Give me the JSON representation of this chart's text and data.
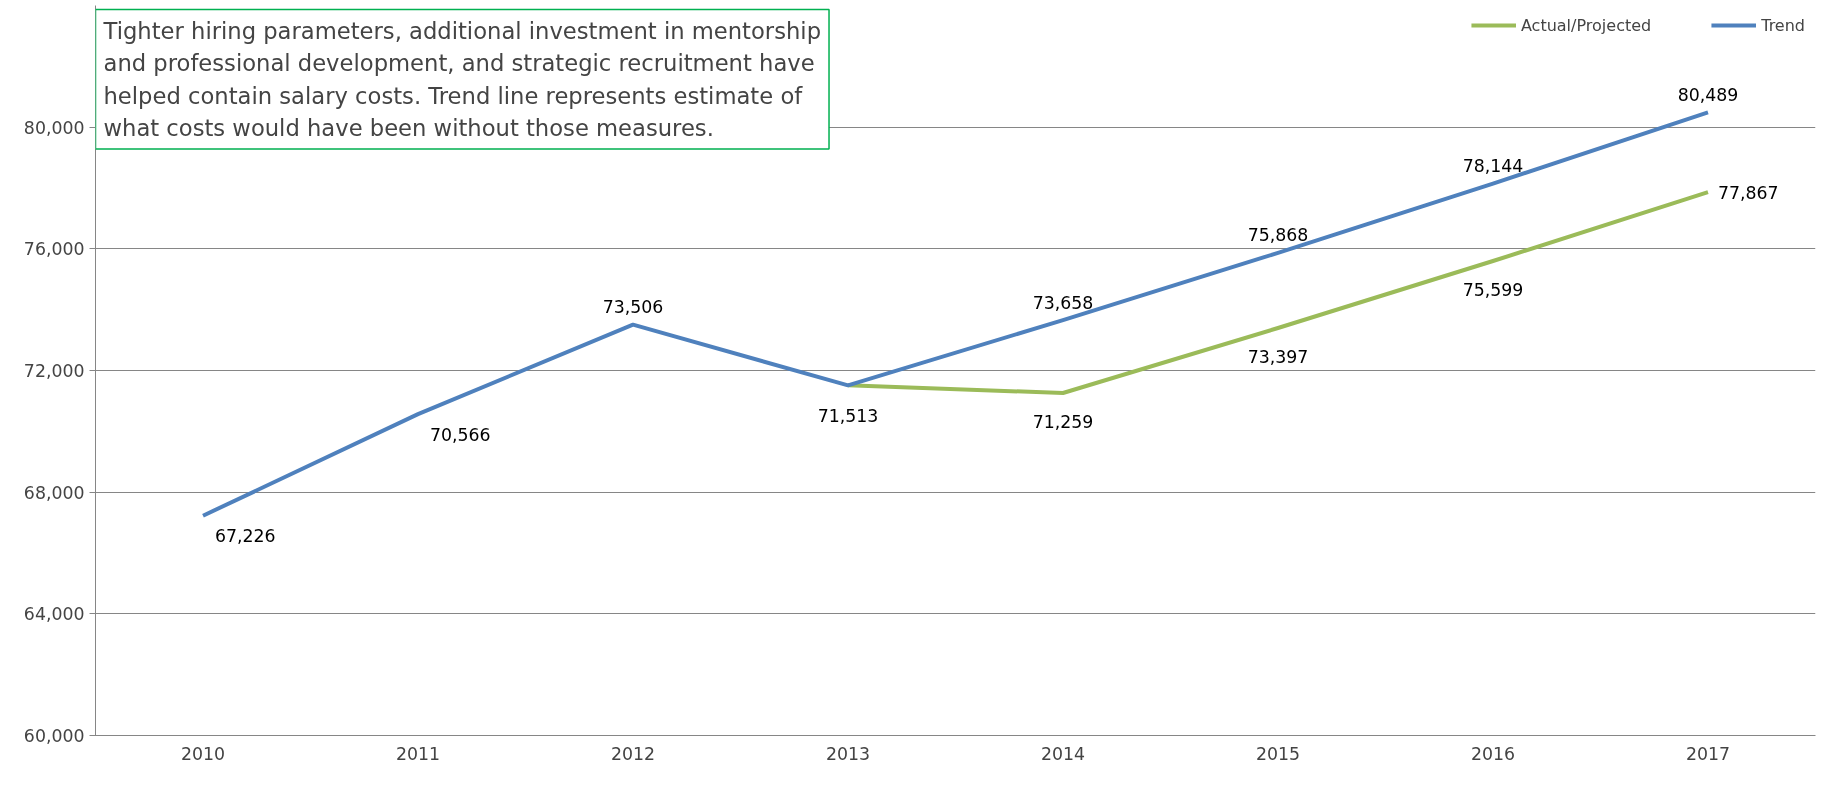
{
  "chart_data": {
    "type": "line",
    "categories": [
      "2010",
      "2011",
      "2012",
      "2013",
      "2014",
      "2015",
      "2016",
      "2017"
    ],
    "series": [
      {
        "name": "Actual/Projected",
        "color": "#9bbb59",
        "values": [
          null,
          null,
          null,
          71513,
          71259,
          73397,
          75599,
          77867
        ],
        "value_labels": [
          null,
          null,
          null,
          null,
          "71,259",
          "73,397",
          "75,599",
          "77,867"
        ]
      },
      {
        "name": "Trend",
        "color": "#4f81bd",
        "values": [
          67226,
          70566,
          73506,
          71513,
          73658,
          75868,
          78144,
          80489
        ],
        "value_labels": [
          "67,226",
          "70,566",
          "73,506",
          "71,513",
          "73,658",
          "75,868",
          "78,144",
          "80,489"
        ]
      }
    ],
    "ylim": [
      60000,
      84000
    ],
    "yticks": [
      {
        "value": 60000,
        "label": "60,000"
      },
      {
        "value": 64000,
        "label": "64,000"
      },
      {
        "value": 68000,
        "label": "68,000"
      },
      {
        "value": 72000,
        "label": "72,000"
      },
      {
        "value": 76000,
        "label": "76,000"
      },
      {
        "value": 80000,
        "label": "80,000"
      }
    ],
    "grid": "y",
    "legend": "top right",
    "marker": "none",
    "line_style": "solid",
    "annotations": [
      "Tighter hiring parameters, additional investment in mentorship and professional development, and strategic recruitment have helped contain salary costs. Trend line represents estimate of what costs would have been without those measures."
    ]
  }
}
